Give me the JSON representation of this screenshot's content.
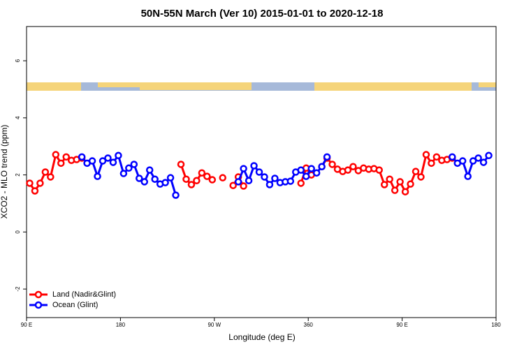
{
  "chart_data": {
    "type": "line",
    "title": "50N-55N March (Ver 10)   2015-01-01 to 2020-12-18",
    "x_label": "Longitude (deg E)",
    "y_label": "XCO2 - MLO trend (ppm)",
    "xlim": [
      90,
      540
    ],
    "xticks": [
      {
        "value": 90,
        "label": "90 E"
      },
      180,
      {
        "value": 270,
        "label": "90 W"
      },
      360,
      {
        "value": 450,
        "label": "90 E"
      },
      {
        "value": 540,
        "label": "180"
      }
    ],
    "ylim": [
      -3,
      7.2
    ],
    "yticks": [
      -2,
      0,
      2,
      4,
      6
    ],
    "legend": "bottom-left",
    "series": [
      {
        "name": "Land (Nadir&Glint)",
        "color": "#ff0000",
        "x": [
          93,
          98,
          103,
          108,
          113,
          118,
          123,
          128,
          133,
          138,
          143,
          190,
          238,
          243,
          248,
          253,
          258,
          263,
          268,
          273,
          278,
          283,
          288,
          293,
          298,
          303,
          353,
          358,
          363,
          368,
          373,
          378,
          383,
          388,
          393,
          398,
          403,
          408,
          413,
          418,
          423,
          428,
          433,
          438,
          443,
          448,
          453,
          458,
          463,
          468,
          473,
          478,
          483,
          488,
          493,
          498
        ],
        "values": [
          1.71,
          1.44,
          1.71,
          2.1,
          1.93,
          2.71,
          2.41,
          2.63,
          2.51,
          2.54,
          2.59,
          null,
          2.37,
          1.85,
          1.66,
          1.8,
          2.07,
          1.95,
          1.83,
          null,
          1.9,
          null,
          1.63,
          1.93,
          1.61,
          null,
          1.71,
          2.24,
          2.0,
          null,
          2.29,
          2.59,
          2.37,
          2.2,
          2.12,
          2.17,
          2.29,
          2.15,
          2.24,
          2.2,
          2.22,
          2.17,
          1.66,
          1.85,
          1.46,
          1.76,
          1.41,
          1.68,
          2.12,
          1.93,
          2.71,
          2.41,
          2.63,
          2.51,
          2.54,
          2.59
        ]
      },
      {
        "name": "Ocean (Glint)",
        "color": "#0000ff",
        "x": [
          143,
          148,
          153,
          158,
          163,
          168,
          173,
          178,
          183,
          188,
          193,
          198,
          203,
          208,
          213,
          218,
          223,
          228,
          233,
          263,
          293,
          298,
          303,
          308,
          313,
          318,
          323,
          328,
          333,
          338,
          343,
          348,
          353,
          358,
          363,
          368,
          373,
          378,
          440,
          498,
          503,
          508,
          513,
          518,
          523,
          528,
          533
        ],
        "values": [
          2.63,
          2.41,
          2.49,
          1.95,
          2.49,
          2.59,
          2.44,
          2.68,
          2.05,
          2.24,
          2.37,
          1.88,
          1.76,
          2.17,
          1.85,
          1.68,
          1.73,
          1.9,
          1.29,
          null,
          1.76,
          2.22,
          1.8,
          2.32,
          2.1,
          1.93,
          1.66,
          1.88,
          1.73,
          1.76,
          1.78,
          2.1,
          2.17,
          1.95,
          2.22,
          2.07,
          2.29,
          2.63,
          null,
          2.63,
          2.41,
          2.49,
          1.95,
          2.49,
          2.59,
          2.44,
          2.68
        ]
      }
    ]
  }
}
